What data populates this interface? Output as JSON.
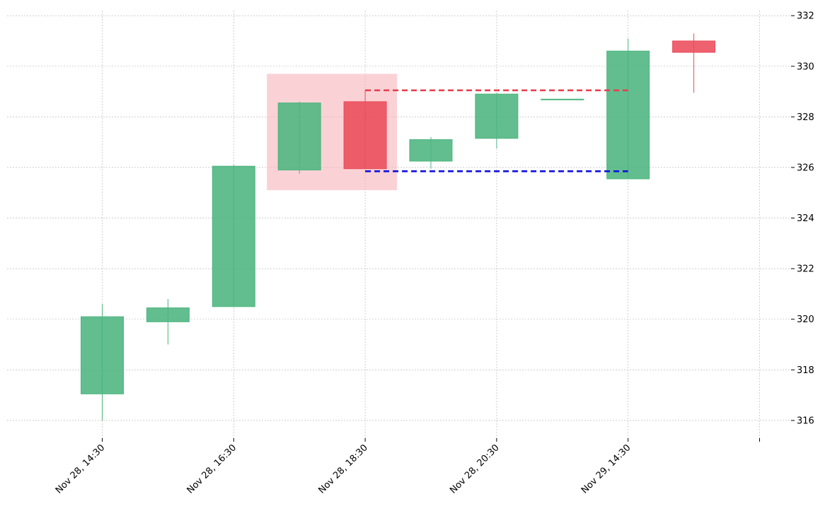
{
  "chart_data": {
    "type": "candlestick",
    "title": "",
    "xlabel": "",
    "ylabel": "",
    "grid": true,
    "y_axis_side": "right",
    "ylim": [
      315.3,
      332.2
    ],
    "y_ticks": [
      316,
      318,
      320,
      322,
      324,
      326,
      328,
      330,
      332
    ],
    "x_ticks": [
      {
        "index": 0,
        "label": "Nov 28, 14:30"
      },
      {
        "index": 2,
        "label": "Nov 28, 16:30"
      },
      {
        "index": 4,
        "label": "Nov 28, 18:30"
      },
      {
        "index": 6,
        "label": "Nov 28, 20:30"
      },
      {
        "index": 8,
        "label": "Nov 29, 14:30"
      },
      {
        "index": 10,
        "label": ""
      }
    ],
    "candles": [
      {
        "open": 317.05,
        "high": 320.6,
        "low": 316.0,
        "close": 320.1
      },
      {
        "open": 319.9,
        "high": 320.8,
        "low": 319.0,
        "close": 320.45
      },
      {
        "open": 320.5,
        "high": 326.1,
        "low": 320.5,
        "close": 326.05
      },
      {
        "open": 325.9,
        "high": 328.6,
        "low": 325.75,
        "close": 328.55
      },
      {
        "open": 328.6,
        "high": 329.05,
        "low": 325.95,
        "close": 325.95
      },
      {
        "open": 326.25,
        "high": 327.2,
        "low": 325.95,
        "close": 327.1
      },
      {
        "open": 327.15,
        "high": 328.95,
        "low": 326.75,
        "close": 328.9
      },
      {
        "open": 328.7,
        "high": 328.7,
        "low": 328.7,
        "close": 328.7
      },
      {
        "open": 325.55,
        "high": 331.1,
        "low": 325.55,
        "close": 330.6
      },
      {
        "open": 331.0,
        "high": 331.3,
        "low": 328.95,
        "close": 330.55
      }
    ],
    "highlight_zone": {
      "from_index": 3,
      "to_index": 4,
      "y_low": 325.1,
      "y_high": 329.7
    },
    "levels": [
      {
        "kind": "resistance",
        "value": 329.05,
        "from_index": 4,
        "to_index": 8,
        "color": "#e8404f"
      },
      {
        "kind": "support",
        "value": 325.85,
        "from_index": 4,
        "to_index": 8,
        "color": "#1010e0"
      }
    ],
    "colors": {
      "up": "#4cb57f",
      "down": "#ea4c5a",
      "zone": "#f7b6bd",
      "grid": "#b0b0b0"
    }
  }
}
